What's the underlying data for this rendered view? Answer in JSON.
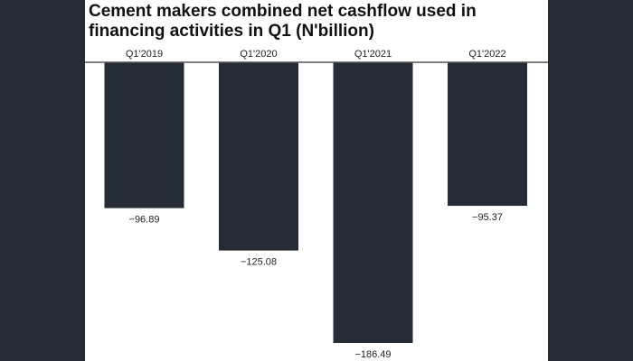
{
  "chart_data": {
    "type": "bar",
    "title": "Cement makers combined net cashflow used in financing activities in Q1 (N'billion)",
    "categories": [
      "Q1'2019",
      "Q1'2020",
      "Q1'2021",
      "Q1'2022"
    ],
    "values": [
      -96.89,
      -125.08,
      -186.49,
      -95.37
    ],
    "value_labels": [
      "−96.89",
      "−125.08",
      "−186.49",
      "−95.37"
    ],
    "xlabel": "",
    "ylabel": "",
    "ylim": [
      -186.49,
      0
    ],
    "grid": false,
    "legend": "none",
    "bar_color": "#262c36"
  }
}
